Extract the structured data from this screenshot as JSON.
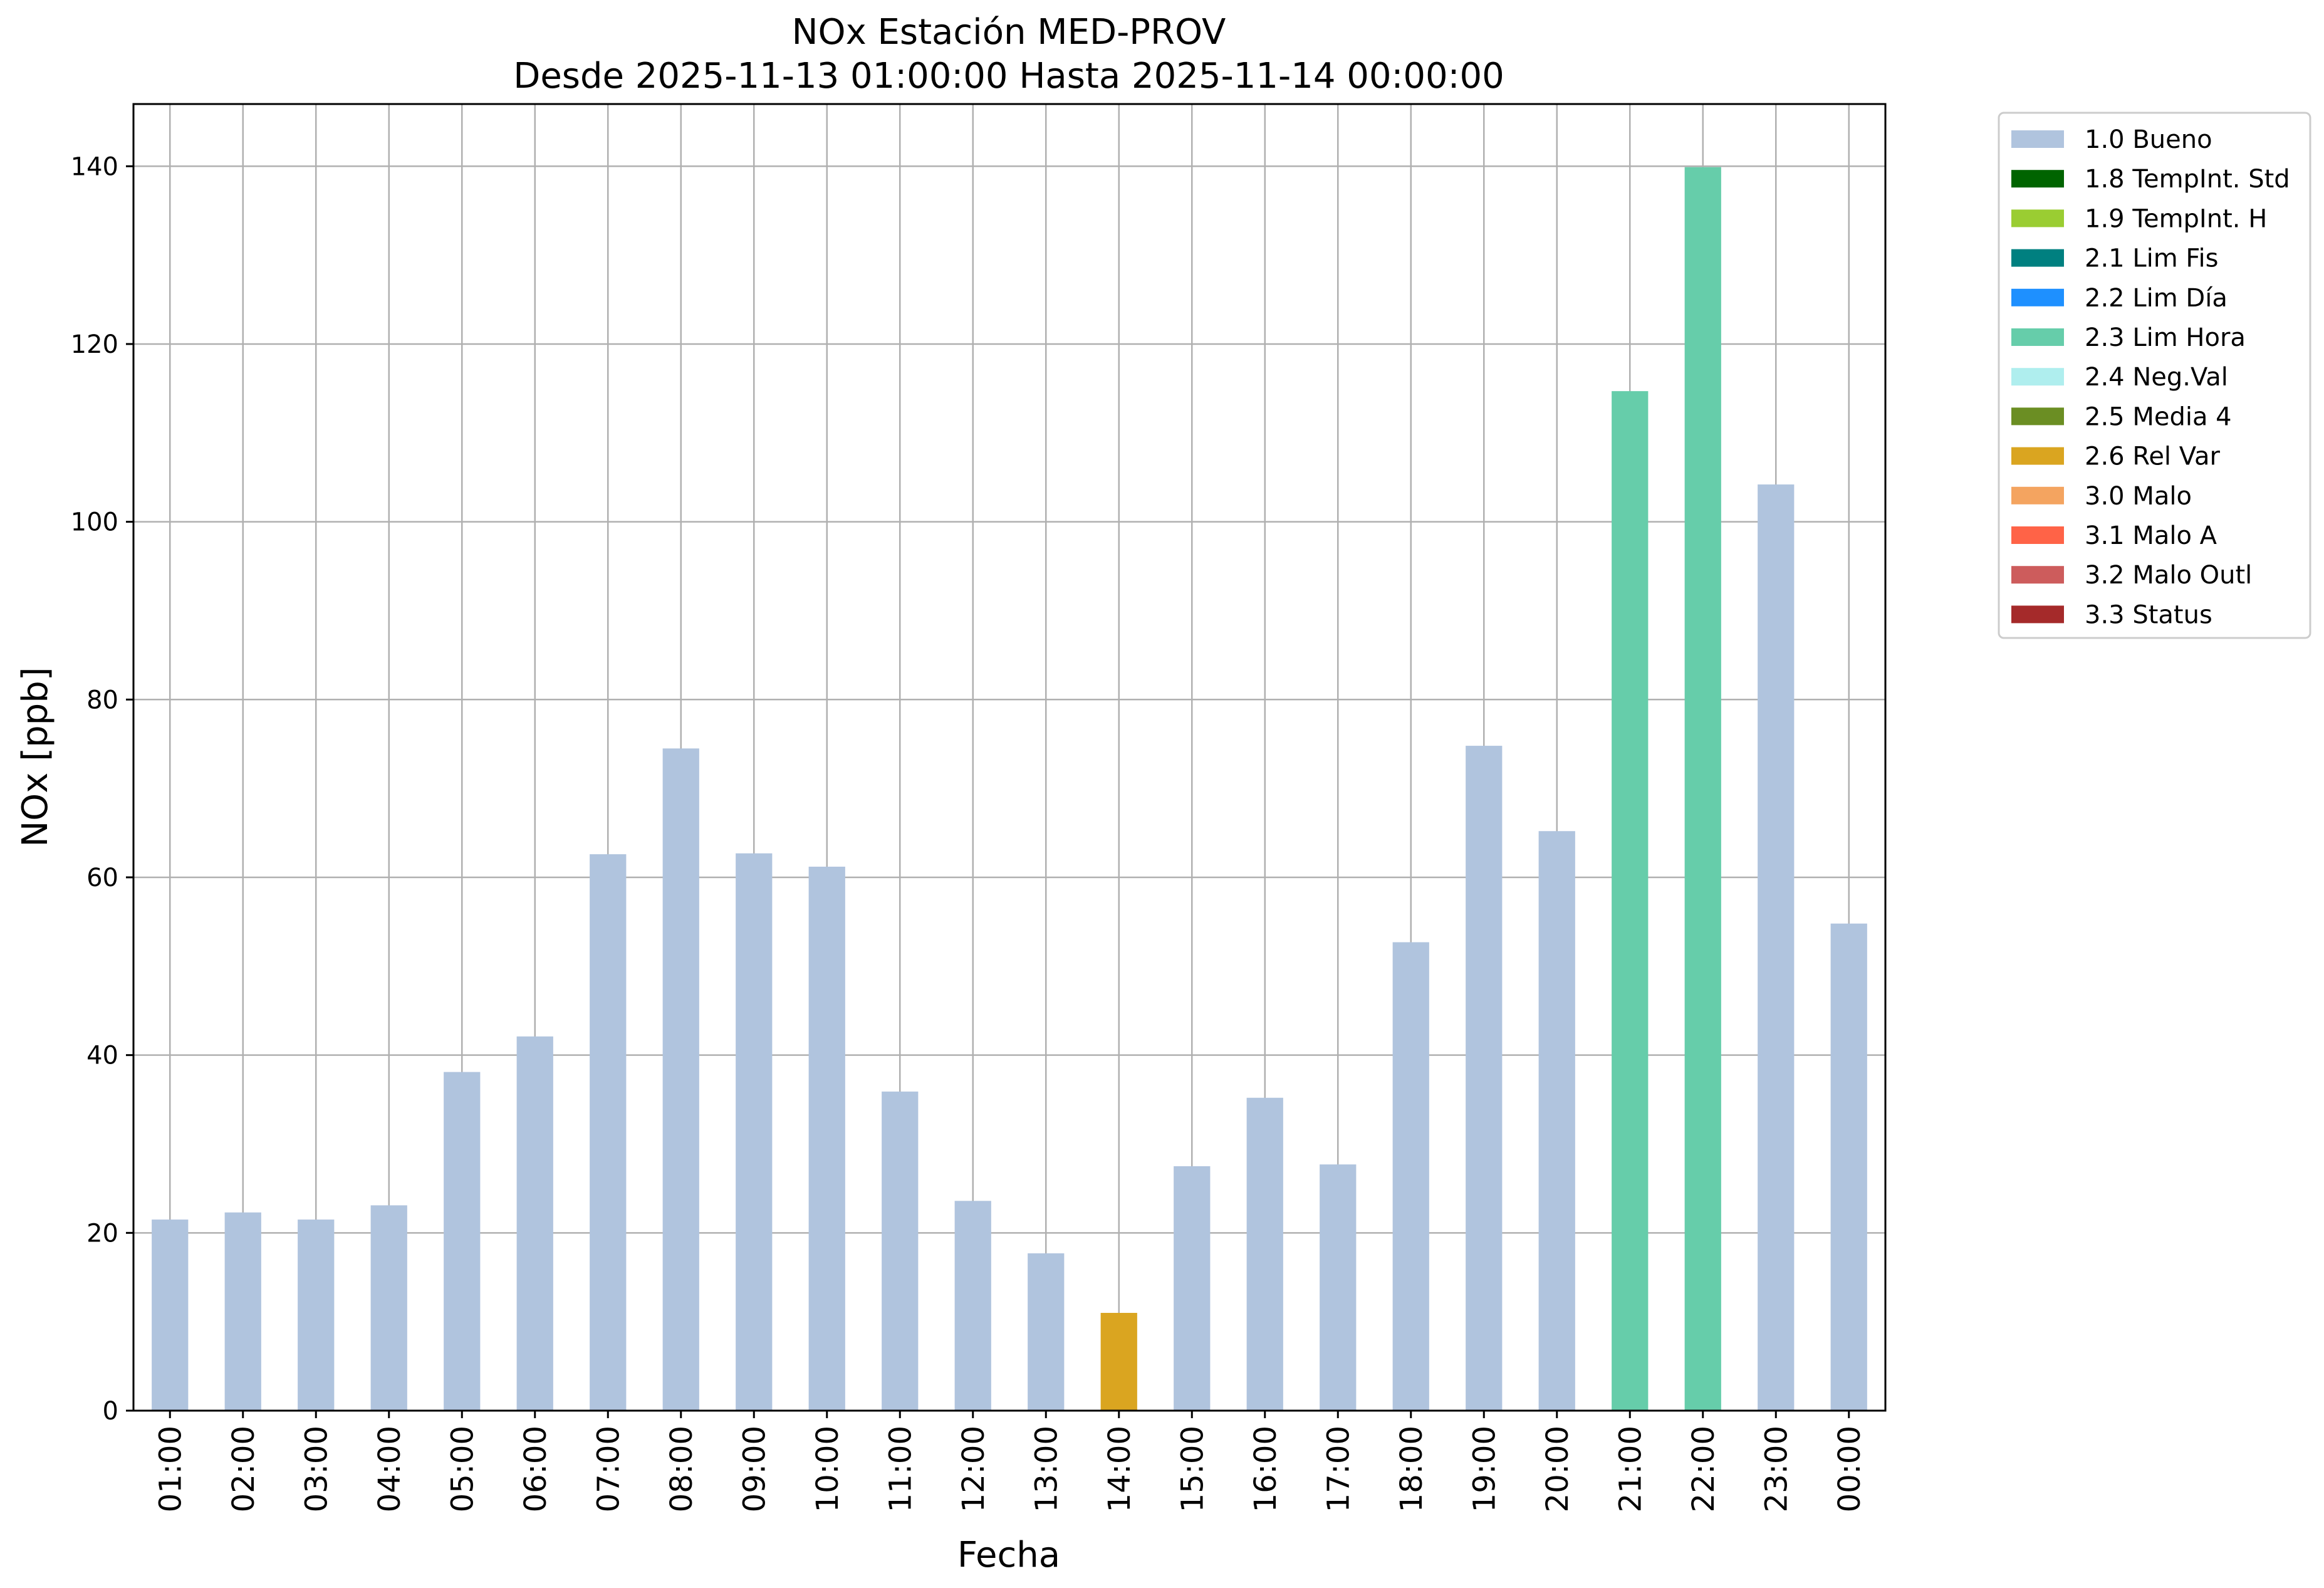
{
  "chart_data": {
    "type": "bar",
    "title": "NOx Estación MED-PROV",
    "subtitle": "Desde 2025-11-13 01:00:00 Hasta 2025-11-14 00:00:00",
    "xlabel": "Fecha",
    "ylabel": "NOx [ppb]",
    "ylim": [
      0,
      147
    ],
    "yticks": [
      0,
      20,
      40,
      60,
      80,
      100,
      120,
      140
    ],
    "grid": true,
    "legend_position": "outside-top-right",
    "categories": [
      "01:00",
      "02:00",
      "03:00",
      "04:00",
      "05:00",
      "06:00",
      "07:00",
      "08:00",
      "09:00",
      "10:00",
      "11:00",
      "12:00",
      "13:00",
      "14:00",
      "15:00",
      "16:00",
      "17:00",
      "18:00",
      "19:00",
      "20:00",
      "21:00",
      "22:00",
      "23:00",
      "00:00"
    ],
    "values": [
      21.5,
      22.3,
      21.5,
      23.1,
      38.1,
      42.1,
      62.6,
      74.5,
      62.7,
      61.2,
      35.9,
      23.6,
      17.7,
      11.0,
      27.5,
      35.2,
      27.7,
      52.7,
      74.8,
      65.2,
      114.7,
      139.9,
      104.2,
      54.8
    ],
    "flags": [
      "1.0 Bueno",
      "1.0 Bueno",
      "1.0 Bueno",
      "1.0 Bueno",
      "1.0 Bueno",
      "1.0 Bueno",
      "1.0 Bueno",
      "1.0 Bueno",
      "1.0 Bueno",
      "1.0 Bueno",
      "1.0 Bueno",
      "1.0 Bueno",
      "1.0 Bueno",
      "2.6 Rel Var",
      "1.0 Bueno",
      "1.0 Bueno",
      "1.0 Bueno",
      "1.0 Bueno",
      "1.0 Bueno",
      "1.0 Bueno",
      "2.3 Lim Hora",
      "2.3 Lim Hora",
      "1.0 Bueno",
      "1.0 Bueno"
    ],
    "legend": [
      {
        "label": "1.0 Bueno",
        "color": "#b0c4de"
      },
      {
        "label": "1.8 TempInt. Std",
        "color": "#006400"
      },
      {
        "label": "1.9 TempInt. H",
        "color": "#9acd32"
      },
      {
        "label": "2.1 Lim Fis",
        "color": "#008080"
      },
      {
        "label": "2.2 Lim Día",
        "color": "#1e90ff"
      },
      {
        "label": "2.3 Lim Hora",
        "color": "#66cdaa"
      },
      {
        "label": "2.4 Neg.Val",
        "color": "#afeeee"
      },
      {
        "label": "2.5 Media 4",
        "color": "#6b8e23"
      },
      {
        "label": "2.6 Rel Var",
        "color": "#daa520"
      },
      {
        "label": "3.0 Malo",
        "color": "#f4a460"
      },
      {
        "label": "3.1 Malo A",
        "color": "#ff6347"
      },
      {
        "label": "3.2 Malo Outl",
        "color": "#cd5c5c"
      },
      {
        "label": "3.3 Status",
        "color": "#a52a2a"
      }
    ]
  }
}
